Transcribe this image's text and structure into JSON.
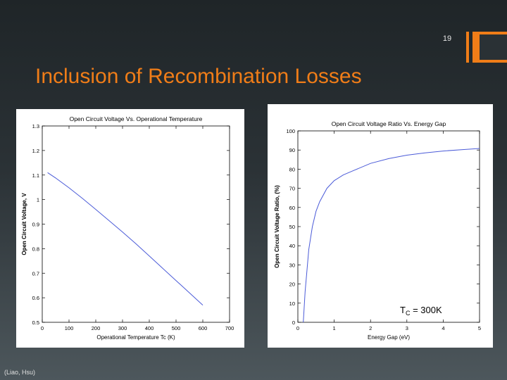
{
  "slide": {
    "number": "19",
    "title": "Inclusion of Recombination Losses",
    "credit": "(Liao, Hsu)",
    "accent_color": "#f07d18"
  },
  "chart_data": [
    {
      "type": "line",
      "title": "Open Circuit Voltage Vs. Operational Temperature",
      "xlabel": "Operational Temperature Tc (K)",
      "ylabel": "Open Circuit Voltage, V",
      "xlim": [
        0,
        700
      ],
      "ylim": [
        0.5,
        1.3
      ],
      "xticks": [
        0,
        100,
        200,
        300,
        400,
        500,
        600,
        700
      ],
      "xtick_labels": [
        "0",
        "100",
        "200",
        "300",
        "400",
        "500",
        "600",
        "700"
      ],
      "yticks": [
        0.5,
        0.6,
        0.7,
        0.8,
        0.9,
        1,
        1.1,
        1.2,
        1.3
      ],
      "ytick_labels": [
        "0.5",
        "0.6",
        "0.7",
        "0.8",
        "0.9",
        "1",
        "1.1",
        "1.2",
        "1.3"
      ],
      "grid": false,
      "line_color": "#4b5bd8",
      "series": [
        {
          "x": [
            20,
            50,
            100,
            150,
            200,
            250,
            300,
            350,
            400,
            450,
            500,
            550,
            600
          ],
          "values": [
            1.11,
            1.088,
            1.048,
            1.005,
            0.96,
            0.914,
            0.868,
            0.82,
            0.77,
            0.72,
            0.67,
            0.62,
            0.57
          ]
        }
      ]
    },
    {
      "type": "line",
      "title": "Open Circuit Voltage Ratio Vs. Energy Gap",
      "xlabel": "Energy Gap (eV)",
      "ylabel": "Open Circuit Voltage Ratio, (%)",
      "xlim": [
        0,
        5
      ],
      "ylim": [
        0,
        100
      ],
      "xticks": [
        0,
        1,
        2,
        3,
        4,
        5
      ],
      "xtick_labels": [
        "0",
        "1",
        "2",
        "3",
        "4",
        "5"
      ],
      "yticks": [
        0,
        10,
        20,
        30,
        40,
        50,
        60,
        70,
        80,
        90,
        100
      ],
      "ytick_labels": [
        "0",
        "10",
        "20",
        "30",
        "40",
        "50",
        "60",
        "70",
        "80",
        "90",
        "100"
      ],
      "grid": false,
      "line_color": "#4b5bd8",
      "annotation": {
        "main": "T",
        "sub": "C",
        "rest": " = 300K"
      },
      "series": [
        {
          "x": [
            0.15,
            0.2,
            0.3,
            0.4,
            0.5,
            0.6,
            0.8,
            1.0,
            1.25,
            1.5,
            2.0,
            2.5,
            3.0,
            3.5,
            4.0,
            4.5,
            5.0
          ],
          "values": [
            0,
            16,
            38,
            50,
            58,
            63,
            70,
            74,
            77,
            79,
            83,
            85.5,
            87.3,
            88.5,
            89.5,
            90.2,
            90.8
          ]
        }
      ]
    }
  ]
}
